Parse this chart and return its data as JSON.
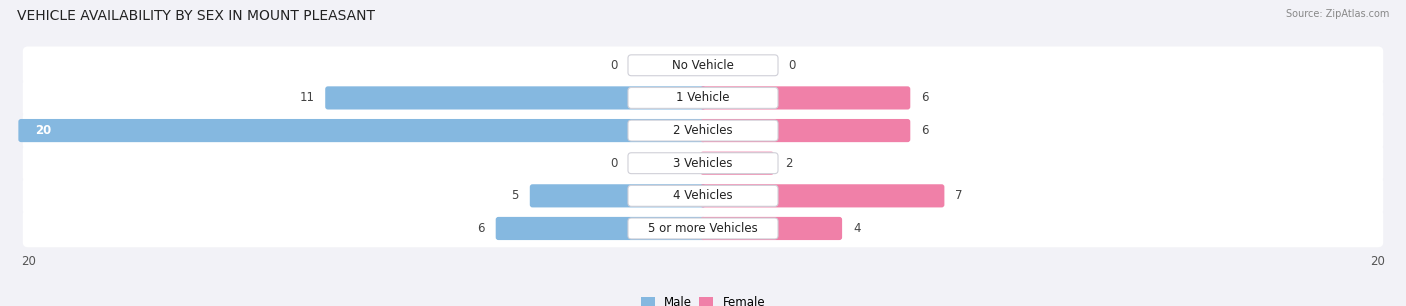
{
  "title": "VEHICLE AVAILABILITY BY SEX IN MOUNT PLEASANT",
  "source": "Source: ZipAtlas.com",
  "categories": [
    "No Vehicle",
    "1 Vehicle",
    "2 Vehicles",
    "3 Vehicles",
    "4 Vehicles",
    "5 or more Vehicles"
  ],
  "male_values": [
    0,
    11,
    20,
    0,
    5,
    6
  ],
  "female_values": [
    0,
    6,
    6,
    2,
    7,
    4
  ],
  "male_color": "#85b8e0",
  "female_color": "#f080a8",
  "axis_max": 20,
  "bg_color": "#f2f2f7",
  "title_fontsize": 10,
  "label_fontsize": 8.5,
  "value_fontsize": 8.5,
  "tick_fontsize": 8.5,
  "legend_male": "Male",
  "legend_female": "Female"
}
